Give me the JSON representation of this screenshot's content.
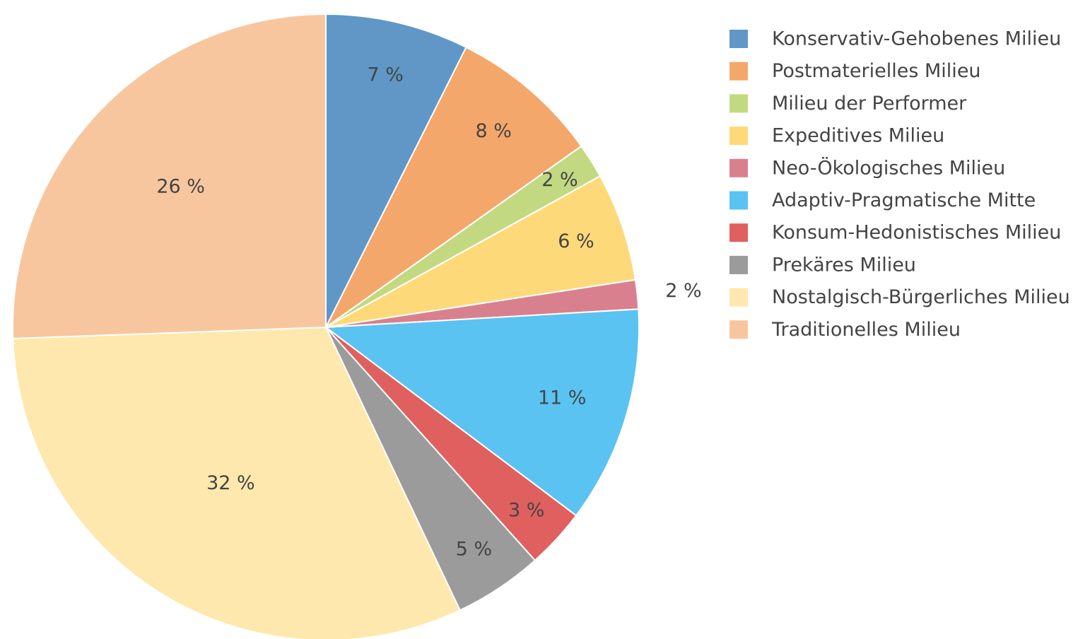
{
  "chart_data": {
    "type": "pie",
    "categories": [
      "Konservativ-Gehobenes Milieu",
      "Postmaterielles Milieu",
      "Milieu der Performer",
      "Expeditives Milieu",
      "Neo-Ökologisches Milieu",
      "Adaptiv-Pragmatische Mitte",
      "Konsum-Hedonistisches Milieu",
      "Prekäres Milieu",
      "Nostalgisch-Bürgerliches Milieu",
      "Traditionelles Milieu"
    ],
    "values": [
      7.4,
      7.8,
      1.8,
      5.6,
      1.5,
      11.2,
      3.1,
      4.6,
      31.5,
      25.6
    ],
    "value_labels": [
      "7 %",
      "8 %",
      "2 %",
      "6 %",
      "2 %",
      "11 %",
      "3 %",
      "5 %",
      "32 %",
      "26 %"
    ],
    "colors": [
      "#6097c6",
      "#f4a76a",
      "#c2d982",
      "#fdd97a",
      "#d9808f",
      "#5ac3f1",
      "#e06060",
      "#9b9b9b",
      "#fee8ad",
      "#f8c69e"
    ],
    "legend": "right"
  }
}
